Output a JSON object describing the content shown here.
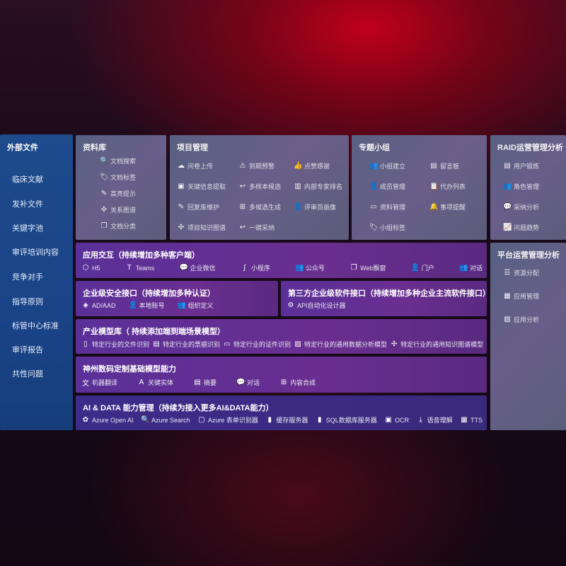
{
  "sidebar": {
    "title": "外部文件",
    "items": [
      "临床文献",
      "发补文件",
      "关键字池",
      "审评培训内容",
      "竞争对手",
      "指导原则",
      "标管中心标准",
      "审评报告",
      "共性问题"
    ]
  },
  "panels": {
    "library": {
      "title": "资料库",
      "items": [
        {
          "icon": "document-search-icon",
          "glyph": "🔍",
          "label": "文档搜索"
        },
        {
          "icon": "tag-icon",
          "glyph": "🏷",
          "label": "文档标签"
        },
        {
          "icon": "pen-icon",
          "glyph": "✎",
          "label": "高亮提示"
        },
        {
          "icon": "graph-icon",
          "glyph": "✣",
          "label": "关系图谱"
        },
        {
          "icon": "document-copy-icon",
          "glyph": "❐",
          "label": "文档分类"
        }
      ]
    },
    "project": {
      "title": "项目管理",
      "items": [
        {
          "icon": "cloud-upload-icon",
          "glyph": "☁",
          "label": "问卷上传"
        },
        {
          "icon": "alarm-icon",
          "glyph": "⚠",
          "label": "到期预警"
        },
        {
          "icon": "thumbs-up-icon",
          "glyph": "👍",
          "label": "点赞感谢"
        },
        {
          "icon": "window-icon",
          "glyph": "▣",
          "label": "关键信息提取"
        },
        {
          "icon": "reply-icon",
          "glyph": "↩",
          "label": "多样本候选"
        },
        {
          "icon": "ranking-icon",
          "glyph": "▥",
          "label": "内部专家排名"
        },
        {
          "icon": "edit-icon",
          "glyph": "✎",
          "label": "回复库维护"
        },
        {
          "icon": "puzzle-icon",
          "glyph": "⊞",
          "label": "多候选生成"
        },
        {
          "icon": "user-icon",
          "glyph": "👤",
          "label": "评审员画像"
        },
        {
          "icon": "network-icon",
          "glyph": "✣",
          "label": "项目知识图谱"
        },
        {
          "icon": "reply-icon",
          "glyph": "↩",
          "label": "一键采纳"
        }
      ]
    },
    "group": {
      "title": "专题小组",
      "items": [
        {
          "icon": "users-icon",
          "glyph": "👥",
          "label": "小组建立"
        },
        {
          "icon": "bbs-icon",
          "glyph": "▤",
          "label": "留言板"
        },
        {
          "icon": "user-add-icon",
          "glyph": "👤",
          "label": "成员管理"
        },
        {
          "icon": "clipboard-icon",
          "glyph": "📋",
          "label": "代办列表"
        },
        {
          "icon": "folder-icon",
          "glyph": "▭",
          "label": "资料管理"
        },
        {
          "icon": "bell-icon",
          "glyph": "🔔",
          "label": "事项提醒"
        },
        {
          "icon": "tag-icon",
          "glyph": "🏷",
          "label": "小组标签"
        }
      ]
    },
    "raid": {
      "title": "RAID运营管理分析",
      "items": [
        {
          "icon": "id-card-icon",
          "glyph": "▤",
          "label": "用户锻炼"
        },
        {
          "icon": "users-icon",
          "glyph": "👥",
          "label": "角色管理"
        },
        {
          "icon": "qa-icon",
          "glyph": "💬",
          "label": "采纳分析"
        },
        {
          "icon": "trend-icon",
          "glyph": "📈",
          "label": "问题趋势"
        }
      ]
    },
    "platform": {
      "title": "平台运营管理分析",
      "items": [
        {
          "icon": "checklist-icon",
          "glyph": "☰",
          "label": "资源分配"
        },
        {
          "icon": "apps-icon",
          "glyph": "▦",
          "label": "应用管理"
        },
        {
          "icon": "chart-icon",
          "glyph": "▨",
          "label": "应用分析"
        }
      ]
    },
    "interaction": {
      "title": "应用交互（持续增加多种客户端）",
      "items": [
        {
          "icon": "html5-icon",
          "glyph": "⬡",
          "label": "H5"
        },
        {
          "icon": "teams-icon",
          "glyph": "T",
          "label": "Teams"
        },
        {
          "icon": "wechat-icon",
          "glyph": "💬",
          "label": "企业微信"
        },
        {
          "icon": "mini-program-icon",
          "glyph": "∫",
          "label": "小程序"
        },
        {
          "icon": "public-account-icon",
          "glyph": "👥",
          "label": "公众号"
        },
        {
          "icon": "web-window-icon",
          "glyph": "❐",
          "label": "Web飘窗"
        },
        {
          "icon": "portal-icon",
          "glyph": "👤",
          "label": "门户"
        },
        {
          "icon": "dialog-icon",
          "glyph": "👥",
          "label": "对话"
        }
      ]
    },
    "security": {
      "title": "企业级安全接口（持续增加多种认证）",
      "items": [
        {
          "icon": "ad-icon",
          "glyph": "◈",
          "label": "AD/AAD"
        },
        {
          "icon": "local-account-icon",
          "glyph": "👤",
          "label": "本地账号"
        },
        {
          "icon": "organization-icon",
          "glyph": "👥",
          "label": "组织定义"
        }
      ]
    },
    "thirdparty": {
      "title": "第三方企业级软件接口（持续增加多种企业主流软件接口）",
      "items": [
        {
          "icon": "gear-icon",
          "glyph": "⚙",
          "label": "API自动化设计器"
        }
      ]
    },
    "industry": {
      "title": "产业模型库（ 持续添加端到端场景模型）",
      "items": [
        {
          "icon": "file-icon",
          "glyph": "▯",
          "label": "特定行业的文件识别"
        },
        {
          "icon": "receipt-icon",
          "glyph": "▤",
          "label": "特定行业的票据识别"
        },
        {
          "icon": "id-card-icon",
          "glyph": "▭",
          "label": "特定行业的证件识别"
        },
        {
          "icon": "data-analysis-icon",
          "glyph": "▨",
          "label": "特定行业的通用数据分析模型"
        },
        {
          "icon": "knowledge-graph-icon",
          "glyph": "✣",
          "label": "特定行业的通用知识图谱模型"
        }
      ]
    },
    "foundation": {
      "title": "神州数码定制基础模型能力",
      "items": [
        {
          "icon": "translate-icon",
          "glyph": "文",
          "label": "机器翻译"
        },
        {
          "icon": "entity-icon",
          "glyph": "A",
          "label": "关键实体"
        },
        {
          "icon": "summary-icon",
          "glyph": "▤",
          "label": "摘要"
        },
        {
          "icon": "chat-icon",
          "glyph": "💬",
          "label": "对话"
        },
        {
          "icon": "content-synthesis-icon",
          "glyph": "⊞",
          "label": "内容合成"
        }
      ]
    },
    "aidata": {
      "title": "AI & DATA 能力管理（持续为接入更多AI&DATA能力）",
      "items": [
        {
          "icon": "openai-icon",
          "glyph": "✿",
          "label": "Azure Open AI"
        },
        {
          "icon": "search-icon",
          "glyph": "🔍",
          "label": "Azure Search"
        },
        {
          "icon": "form-recognizer-icon",
          "glyph": "▢",
          "label": "Azure 表单识别器"
        },
        {
          "icon": "cache-server-icon",
          "glyph": "▮",
          "label": "缓存服务器"
        },
        {
          "icon": "sql-database-icon",
          "glyph": "▮",
          "label": "SQL数据库服务器"
        },
        {
          "icon": "ocr-icon",
          "glyph": "▣",
          "label": "OCR"
        },
        {
          "icon": "speech-icon",
          "glyph": "⤓",
          "label": "语音理解"
        },
        {
          "icon": "tts-icon",
          "glyph": "▦",
          "label": "TTS"
        }
      ]
    }
  }
}
